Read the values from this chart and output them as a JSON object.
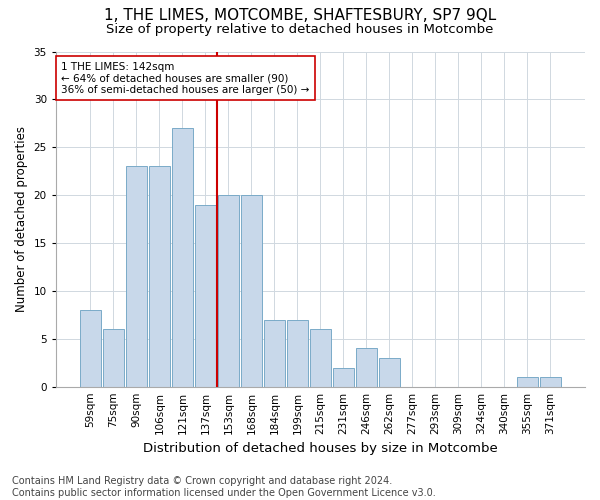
{
  "title": "1, THE LIMES, MOTCOMBE, SHAFTESBURY, SP7 9QL",
  "subtitle": "Size of property relative to detached houses in Motcombe",
  "xlabel": "Distribution of detached houses by size in Motcombe",
  "ylabel": "Number of detached properties",
  "bar_labels": [
    "59sqm",
    "75sqm",
    "90sqm",
    "106sqm",
    "121sqm",
    "137sqm",
    "153sqm",
    "168sqm",
    "184sqm",
    "199sqm",
    "215sqm",
    "231sqm",
    "246sqm",
    "262sqm",
    "277sqm",
    "293sqm",
    "309sqm",
    "324sqm",
    "340sqm",
    "355sqm",
    "371sqm"
  ],
  "bar_heights": [
    8,
    6,
    23,
    23,
    27,
    19,
    20,
    20,
    7,
    7,
    6,
    2,
    4,
    3,
    0,
    0,
    0,
    0,
    0,
    1,
    1
  ],
  "bar_color": "#c8d8ea",
  "bar_edge_color": "#7aaac8",
  "vline_color": "#cc0000",
  "vline_x": 5.5,
  "annotation_text": "1 THE LIMES: 142sqm\n← 64% of detached houses are smaller (90)\n36% of semi-detached houses are larger (50) →",
  "annotation_box_color": "#ffffff",
  "annotation_box_edge": "#cc0000",
  "ylim": [
    0,
    35
  ],
  "yticks": [
    0,
    5,
    10,
    15,
    20,
    25,
    30,
    35
  ],
  "footnote": "Contains HM Land Registry data © Crown copyright and database right 2024.\nContains public sector information licensed under the Open Government Licence v3.0.",
  "title_fontsize": 11,
  "subtitle_fontsize": 9.5,
  "xlabel_fontsize": 9.5,
  "ylabel_fontsize": 8.5,
  "tick_fontsize": 7.5,
  "footnote_fontsize": 7,
  "background_color": "#ffffff",
  "grid_color": "#d0d8e0"
}
